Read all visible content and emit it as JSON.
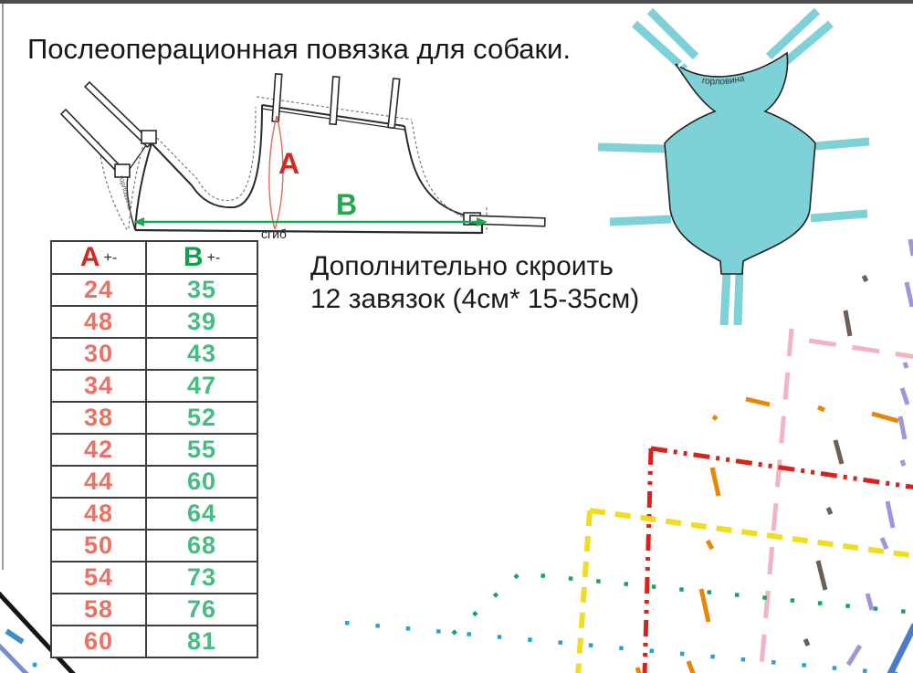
{
  "title": "Послеоперационная повязка для собаки.",
  "note": {
    "line1": "Дополнительно скроить",
    "line2": "12 завязок (4см* 15-35см)"
  },
  "pattern_drawing": {
    "label_a": "A",
    "label_b": "B",
    "fold_label": "сгиб",
    "neck_edge_label": "горловина"
  },
  "illustration": {
    "neck_label": "горловина"
  },
  "size_table": {
    "headers": [
      {
        "label": "A",
        "suffix": "+-"
      },
      {
        "label": "B",
        "suffix": "+-"
      }
    ],
    "rows": [
      [
        24,
        35
      ],
      [
        48,
        39
      ],
      [
        30,
        43
      ],
      [
        34,
        47
      ],
      [
        38,
        52
      ],
      [
        42,
        55
      ],
      [
        44,
        60
      ],
      [
        48,
        64
      ],
      [
        50,
        68
      ],
      [
        54,
        73
      ],
      [
        58,
        76
      ],
      [
        60,
        81
      ]
    ]
  },
  "colors": {
    "measure_a_red": "#d6281e",
    "measure_b_green": "#0ca24b",
    "table_a_values": "#ea7163",
    "table_b_values": "#46bb82",
    "garment_teal": "#7ed1d6",
    "cutline_pink": "#f2b3c3",
    "cutline_red": "#d8231d",
    "cutline_yellow": "#f0dd22",
    "cutline_green": "#18a558",
    "cutline_cyan": "#2aa0d5",
    "cutline_orange": "#e8860a",
    "cutline_brown": "#6e5e55",
    "cutline_lavender": "#9e96dd",
    "cutline_blue": "#4a7cc7",
    "cutline_black": "#151515",
    "cutline_periwinkle": "#7f8ad6"
  }
}
